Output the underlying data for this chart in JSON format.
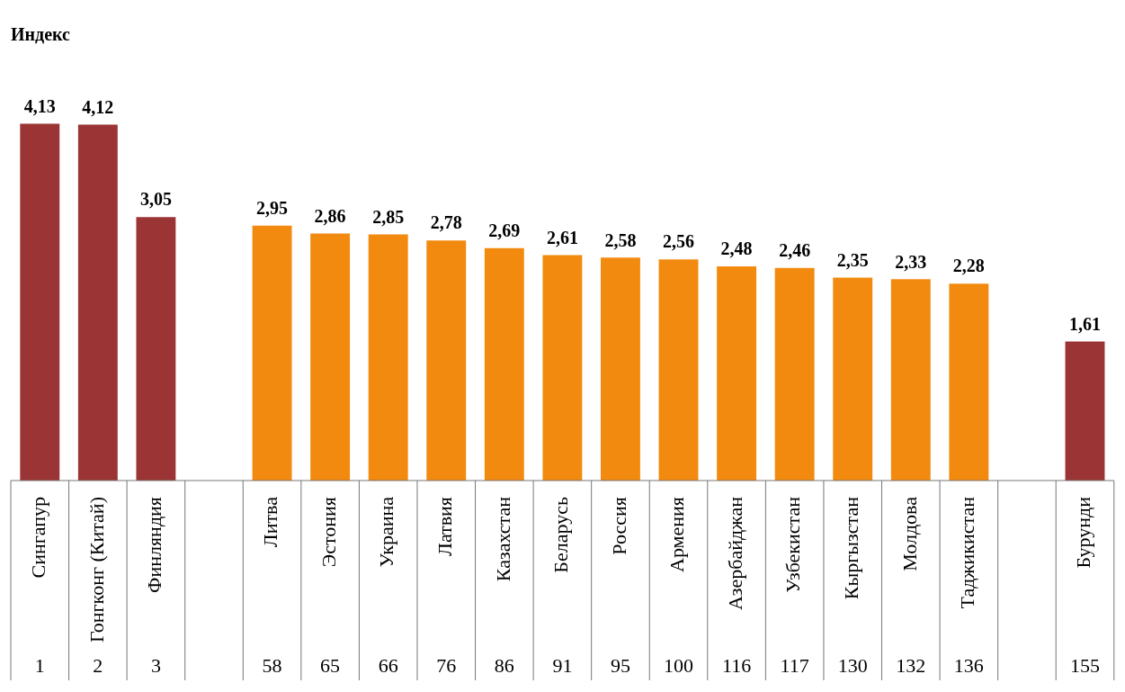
{
  "chart_data": {
    "type": "bar",
    "title": "Индекс",
    "categories": [
      "Сингапур",
      "Гонгконг (Китай)",
      "Финляндия",
      null,
      "Литва",
      "Эстония",
      "Украина",
      "Латвия",
      "Казахстан",
      "Беларусь",
      "Россия",
      "Армения",
      "Азербайджан",
      "Узбекистан",
      "Кыргызстан",
      "Молдова",
      "Таджикистан",
      null,
      "Бурунди"
    ],
    "values": [
      4.13,
      4.12,
      3.05,
      null,
      2.95,
      2.86,
      2.85,
      2.78,
      2.69,
      2.61,
      2.58,
      2.56,
      2.48,
      2.46,
      2.35,
      2.33,
      2.28,
      null,
      1.61
    ],
    "colors": [
      "#9b3535",
      "#9b3535",
      "#9b3535",
      "#ffffff",
      "#f28a10",
      "#f28a10",
      "#f28a10",
      "#f28a10",
      "#f28a10",
      "#f28a10",
      "#f28a10",
      "#f28a10",
      "#f28a10",
      "#f28a10",
      "#f28a10",
      "#f28a10",
      "#f28a10",
      "#ffffff",
      "#9b3535"
    ],
    "value_labels": [
      "4,13",
      "4,12",
      "3,05",
      null,
      "2,95",
      "2,86",
      "2,85",
      "2,78",
      "2,69",
      "2,61",
      "2,58",
      "2,56",
      "2,48",
      "2,46",
      "2,35",
      "2,33",
      "2,28",
      null,
      "1,61"
    ],
    "annotations": [
      "1",
      "2",
      "3",
      "58",
      "65",
      "66",
      "76",
      "86",
      "91",
      "95",
      "100",
      "116",
      "117",
      "130",
      "132",
      "136",
      "155"
    ]
  }
}
